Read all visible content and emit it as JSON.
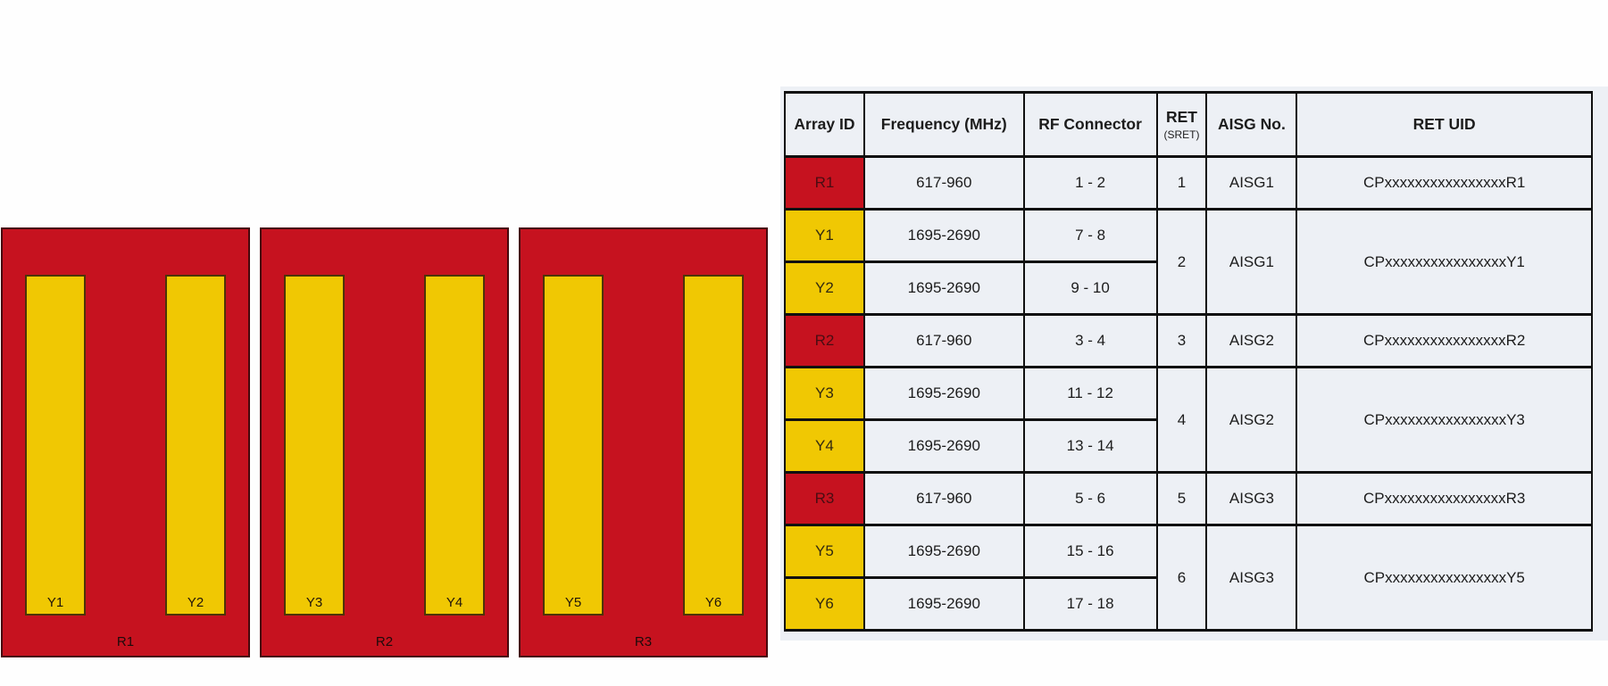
{
  "colors": {
    "panel_red": "#c6121f",
    "array_yellow": "#f0c803",
    "table_cell_bg": "#edf0f5",
    "table_border": "#101010"
  },
  "diagram": {
    "panels": [
      {
        "label": "R1",
        "arrays": [
          {
            "label": "Y1"
          },
          {
            "label": "Y2"
          }
        ]
      },
      {
        "label": "R2",
        "arrays": [
          {
            "label": "Y3"
          },
          {
            "label": "Y4"
          }
        ]
      },
      {
        "label": "R3",
        "arrays": [
          {
            "label": "Y5"
          },
          {
            "label": "Y6"
          }
        ]
      }
    ]
  },
  "table": {
    "headers": {
      "array_id": "Array ID",
      "frequency": "Frequency (MHz)",
      "rf_connector": "RF Connector",
      "ret_line1": "RET",
      "ret_line2": "(SRET)",
      "aisg_no": "AISG No.",
      "ret_uid": "RET UID"
    },
    "rows": [
      {
        "array_id": "R1",
        "type": "red",
        "frequency": "617-960",
        "rf": "1 - 2",
        "ret": "1",
        "aisg": "AISG1",
        "uid": "CPxxxxxxxxxxxxxxxxR1",
        "span": 1
      },
      {
        "array_id": "Y1",
        "type": "yellow",
        "frequency": "1695-2690",
        "rf": "7 - 8",
        "ret": "2",
        "aisg": "AISG1",
        "uid": "CPxxxxxxxxxxxxxxxxY1",
        "span": 2
      },
      {
        "array_id": "Y2",
        "type": "yellow",
        "frequency": "1695-2690",
        "rf": "9 - 10"
      },
      {
        "array_id": "R2",
        "type": "red",
        "frequency": "617-960",
        "rf": "3 - 4",
        "ret": "3",
        "aisg": "AISG2",
        "uid": "CPxxxxxxxxxxxxxxxxR2",
        "span": 1
      },
      {
        "array_id": "Y3",
        "type": "yellow",
        "frequency": "1695-2690",
        "rf": "11 - 12",
        "ret": "4",
        "aisg": "AISG2",
        "uid": "CPxxxxxxxxxxxxxxxxY3",
        "span": 2
      },
      {
        "array_id": "Y4",
        "type": "yellow",
        "frequency": "1695-2690",
        "rf": "13 - 14"
      },
      {
        "array_id": "R3",
        "type": "red",
        "frequency": "617-960",
        "rf": "5 - 6",
        "ret": "5",
        "aisg": "AISG3",
        "uid": "CPxxxxxxxxxxxxxxxxR3",
        "span": 1
      },
      {
        "array_id": "Y5",
        "type": "yellow",
        "frequency": "1695-2690",
        "rf": "15 - 16",
        "ret": "6",
        "aisg": "AISG3",
        "uid": "CPxxxxxxxxxxxxxxxxY5",
        "span": 2
      },
      {
        "array_id": "Y6",
        "type": "yellow",
        "frequency": "1695-2690",
        "rf": "17 - 18"
      }
    ]
  }
}
